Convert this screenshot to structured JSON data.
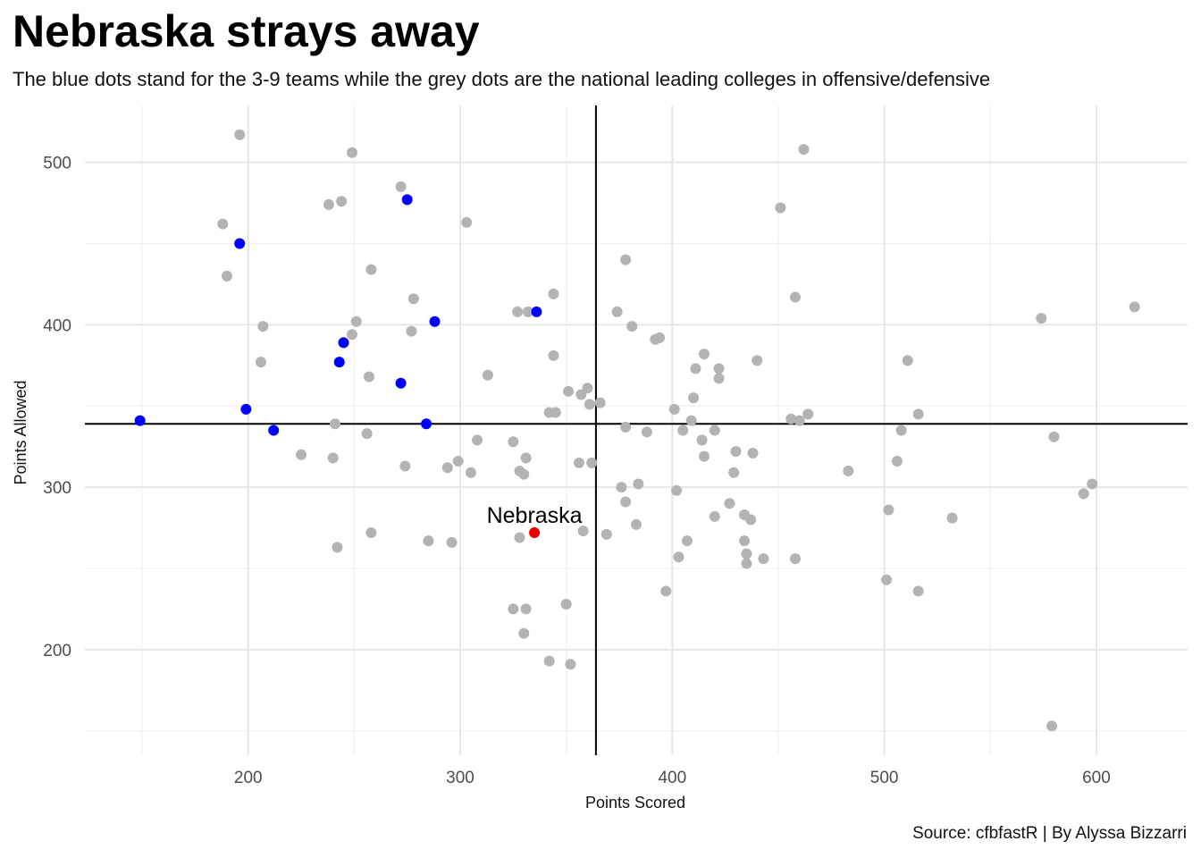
{
  "chart_data": {
    "type": "scatter",
    "title": "Nebraska strays away",
    "subtitle": "The blue dots stand for the 3-9 teams while the grey dots are the national leading colleges in offensive/defensive",
    "caption": "Source: cfbfastR | By Alyssa Bizzarri",
    "xlabel": "Points Scored",
    "ylabel": "Points Allowed",
    "xlim": [
      123,
      643
    ],
    "ylim": [
      135,
      535
    ],
    "x_ticks": [
      200,
      300,
      400,
      500,
      600
    ],
    "y_ticks": [
      200,
      300,
      400,
      500
    ],
    "grid": true,
    "reference_lines": {
      "x": 364,
      "y": 339
    },
    "colors": {
      "grey": "#b3b3b3",
      "blue": "#0000ff",
      "highlight": "#ee0000",
      "line": "#000000"
    },
    "annotations": [
      {
        "text": "Nebraska",
        "x": 335,
        "y": 272
      }
    ],
    "series": [
      {
        "color": "grey",
        "points": [
          [
            196,
            517
          ],
          [
            249,
            506
          ],
          [
            462,
            508
          ],
          [
            272,
            485
          ],
          [
            238,
            474
          ],
          [
            244,
            476
          ],
          [
            451,
            472
          ],
          [
            188,
            462
          ],
          [
            303,
            463
          ],
          [
            378,
            440
          ],
          [
            258,
            434
          ],
          [
            190,
            430
          ],
          [
            278,
            416
          ],
          [
            344,
            419
          ],
          [
            458,
            417
          ],
          [
            327,
            408
          ],
          [
            332,
            408
          ],
          [
            374,
            408
          ],
          [
            618,
            411
          ],
          [
            207,
            399
          ],
          [
            251,
            402
          ],
          [
            249,
            394
          ],
          [
            277,
            396
          ],
          [
            381,
            399
          ],
          [
            392,
            391
          ],
          [
            394,
            392
          ],
          [
            574,
            404
          ],
          [
            206,
            377
          ],
          [
            257,
            368
          ],
          [
            313,
            369
          ],
          [
            344,
            381
          ],
          [
            415,
            382
          ],
          [
            411,
            373
          ],
          [
            422,
            373
          ],
          [
            422,
            367
          ],
          [
            440,
            378
          ],
          [
            511,
            378
          ],
          [
            351,
            359
          ],
          [
            357,
            357
          ],
          [
            360,
            361
          ],
          [
            342,
            346
          ],
          [
            345,
            346
          ],
          [
            361,
            351
          ],
          [
            366,
            352
          ],
          [
            401,
            348
          ],
          [
            410,
            355
          ],
          [
            241,
            339
          ],
          [
            256,
            333
          ],
          [
            308,
            329
          ],
          [
            325,
            328
          ],
          [
            378,
            337
          ],
          [
            388,
            334
          ],
          [
            405,
            335
          ],
          [
            409,
            341
          ],
          [
            414,
            329
          ],
          [
            420,
            335
          ],
          [
            456,
            342
          ],
          [
            460,
            341
          ],
          [
            464,
            345
          ],
          [
            508,
            335
          ],
          [
            516,
            345
          ],
          [
            580,
            331
          ],
          [
            225,
            320
          ],
          [
            240,
            318
          ],
          [
            274,
            313
          ],
          [
            294,
            312
          ],
          [
            299,
            316
          ],
          [
            305,
            309
          ],
          [
            328,
            310
          ],
          [
            330,
            308
          ],
          [
            331,
            318
          ],
          [
            356,
            315
          ],
          [
            362,
            315
          ],
          [
            415,
            319
          ],
          [
            429,
            309
          ],
          [
            430,
            322
          ],
          [
            438,
            321
          ],
          [
            483,
            310
          ],
          [
            506,
            316
          ],
          [
            376,
            300
          ],
          [
            384,
            302
          ],
          [
            402,
            298
          ],
          [
            378,
            291
          ],
          [
            427,
            290
          ],
          [
            242,
            263
          ],
          [
            258,
            272
          ],
          [
            285,
            267
          ],
          [
            296,
            266
          ],
          [
            328,
            269
          ],
          [
            358,
            273
          ],
          [
            369,
            271
          ],
          [
            383,
            277
          ],
          [
            407,
            267
          ],
          [
            403,
            257
          ],
          [
            420,
            282
          ],
          [
            434,
            283
          ],
          [
            437,
            280
          ],
          [
            434,
            267
          ],
          [
            435,
            259
          ],
          [
            435,
            253
          ],
          [
            443,
            256
          ],
          [
            458,
            256
          ],
          [
            502,
            286
          ],
          [
            532,
            281
          ],
          [
            594,
            296
          ],
          [
            598,
            302
          ],
          [
            397,
            236
          ],
          [
            501,
            243
          ],
          [
            516,
            236
          ],
          [
            325,
            225
          ],
          [
            331,
            225
          ],
          [
            350,
            228
          ],
          [
            330,
            210
          ],
          [
            342,
            193
          ],
          [
            352,
            191
          ],
          [
            579,
            153
          ]
        ]
      },
      {
        "color": "blue",
        "points": [
          [
            196,
            450
          ],
          [
            275,
            477
          ],
          [
            288,
            402
          ],
          [
            336,
            408
          ],
          [
            245,
            389
          ],
          [
            243,
            377
          ],
          [
            272,
            364
          ],
          [
            149,
            341
          ],
          [
            199,
            348
          ],
          [
            212,
            335
          ],
          [
            284,
            339
          ]
        ]
      },
      {
        "color": "highlight",
        "name": "Nebraska",
        "points": [
          [
            335,
            272
          ]
        ]
      }
    ]
  }
}
